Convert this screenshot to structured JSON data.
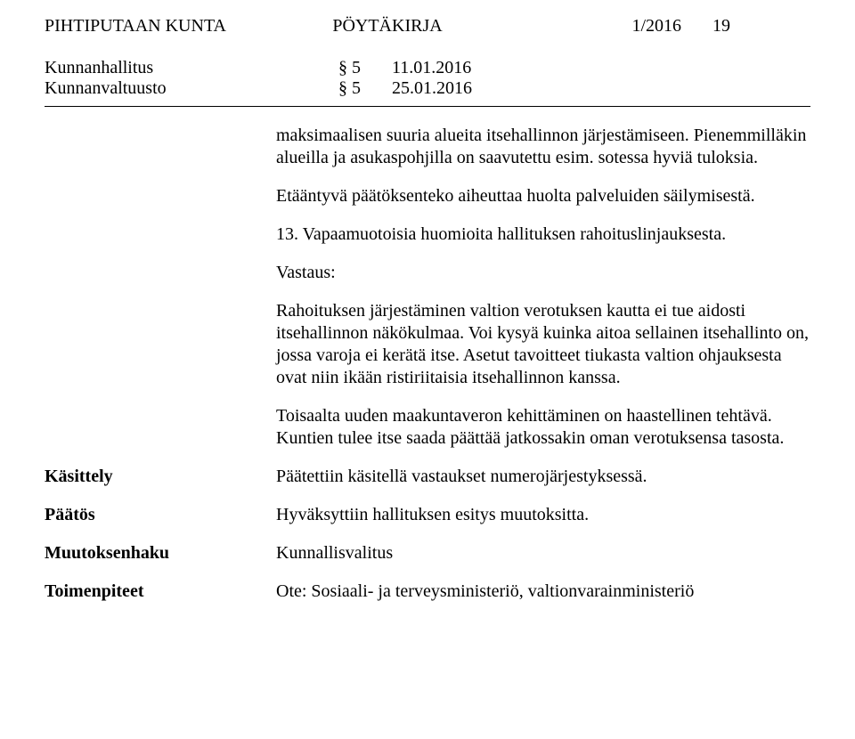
{
  "header": {
    "org": "PIHTIPUTAAN KUNTA",
    "doc_type": "PÖYTÄKIRJA",
    "issue": "1/2016",
    "page": "19"
  },
  "meetings": [
    {
      "name": "Kunnanhallitus",
      "section": "§ 5",
      "date": "11.01.2016"
    },
    {
      "name": "Kunnanvaltuusto",
      "section": "§ 5",
      "date": "25.01.2016"
    }
  ],
  "body": {
    "p1": "maksimaalisen suuria alueita itsehallinnon järjestämiseen. Pienemmilläkin alueilla ja asukaspohjilla  on saavutettu esim.  sotessa hyviä tuloksia.",
    "p2": "Etääntyvä päätöksenteko aiheuttaa huolta palveluiden säilymisestä.",
    "p3": "13. Vapaamuotoisia huomioita hallituksen rahoituslinjauksesta.",
    "p4": "Vastaus:",
    "p5": "Rahoituksen järjestäminen valtion verotuksen kautta ei tue aidosti itsehallinnon näkökulmaa. Voi kysyä kuinka aitoa sellainen itsehallinto on, jossa varoja ei kerätä itse. Asetut tavoitteet tiukasta valtion ohjauksesta ovat niin ikään ristiriitaisia itsehallinnon kanssa.",
    "p6": "Toisaalta uuden maakuntaveron kehittäminen on haastellinen tehtävä. Kuntien tulee itse saada päättää jatkossakin oman verotuksensa tasosta."
  },
  "rows": {
    "kasittely": {
      "label": "Käsittely",
      "value": "Päätettiin käsitellä vastaukset numerojärjestyksessä."
    },
    "paatos": {
      "label": "Päätös",
      "value": "Hyväksyttiin hallituksen esitys muutoksitta."
    },
    "muutoksenhaku": {
      "label": "Muutoksenhaku",
      "value": "Kunnallisvalitus"
    },
    "toimenpiteet": {
      "label": "Toimenpiteet",
      "value": "Ote: Sosiaali- ja terveysministeriö, valtionvarainministeriö"
    }
  }
}
